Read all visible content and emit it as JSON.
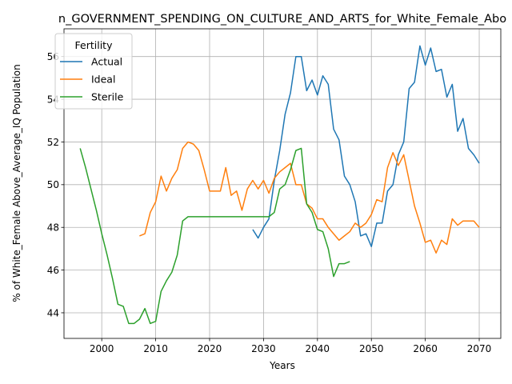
{
  "chart_data": {
    "type": "line",
    "title": "n_GOVERNMENT_SPENDING_ON_CULTURE_AND_ARTS_for_White_Female_Abo",
    "xlabel": "Years",
    "ylabel": "% of White_Female Above_Average_IQ Population",
    "xlim": [
      1993,
      2074
    ],
    "ylim": [
      42.8,
      57.3
    ],
    "xticks": [
      2000,
      2010,
      2020,
      2030,
      2040,
      2050,
      2060,
      2070
    ],
    "yticks": [
      44,
      46,
      48,
      50,
      52,
      54,
      56
    ],
    "grid": true,
    "legend": {
      "title": "Fertility",
      "placement": "top-left"
    },
    "series": [
      {
        "name": "Actual",
        "color": "#1f77b4",
        "x": [
          2028,
          2029,
          2030,
          2031,
          2032,
          2033,
          2034,
          2035,
          2036,
          2037,
          2038,
          2039,
          2040,
          2041,
          2042,
          2043,
          2044,
          2045,
          2046,
          2047,
          2048,
          2049,
          2050,
          2051,
          2052,
          2053,
          2054,
          2055,
          2056,
          2057,
          2058,
          2059,
          2060,
          2061,
          2062,
          2063,
          2064,
          2065,
          2066,
          2067,
          2068,
          2069,
          2070
        ],
        "values": [
          47.9,
          47.5,
          48.0,
          48.4,
          50.2,
          51.6,
          53.3,
          54.3,
          56.0,
          56.0,
          54.4,
          54.9,
          54.2,
          55.1,
          54.7,
          52.6,
          52.1,
          50.4,
          50.0,
          49.2,
          47.6,
          47.7,
          47.1,
          48.2,
          48.2,
          49.7,
          50.0,
          51.4,
          52.0,
          54.5,
          54.8,
          56.5,
          55.6,
          56.4,
          55.3,
          55.4,
          54.1,
          54.7,
          52.5,
          53.1,
          51.7,
          51.4,
          51.0
        ]
      },
      {
        "name": "Ideal",
        "color": "#ff7f0e",
        "x": [
          2007,
          2008,
          2009,
          2010,
          2011,
          2012,
          2013,
          2014,
          2015,
          2016,
          2017,
          2018,
          2019,
          2020,
          2021,
          2022,
          2023,
          2024,
          2025,
          2026,
          2027,
          2028,
          2029,
          2030,
          2031,
          2032,
          2033,
          2034,
          2035,
          2036,
          2037,
          2038,
          2039,
          2040,
          2041,
          2042,
          2043,
          2044,
          2045,
          2046,
          2047,
          2048,
          2049,
          2050,
          2051,
          2052,
          2053,
          2054,
          2055,
          2056,
          2057,
          2058,
          2059,
          2060,
          2061,
          2062,
          2063,
          2064,
          2065,
          2066,
          2067,
          2068,
          2069,
          2070
        ],
        "values": [
          47.6,
          47.7,
          48.7,
          49.2,
          50.4,
          49.7,
          50.3,
          50.7,
          51.7,
          52.0,
          51.9,
          51.6,
          50.7,
          49.7,
          49.7,
          49.7,
          50.8,
          49.5,
          49.7,
          48.8,
          49.8,
          50.2,
          49.8,
          50.2,
          49.6,
          50.3,
          50.6,
          50.8,
          51.0,
          50.0,
          50.0,
          49.1,
          48.9,
          48.4,
          48.4,
          48.0,
          47.7,
          47.4,
          47.6,
          47.8,
          48.2,
          48.0,
          48.2,
          48.6,
          49.3,
          49.2,
          50.8,
          51.5,
          50.9,
          51.4,
          50.2,
          49.0,
          48.2,
          47.3,
          47.4,
          46.8,
          47.4,
          47.2,
          48.4,
          48.1,
          48.3,
          48.3,
          48.3,
          48.0
        ]
      },
      {
        "name": "Sterile",
        "color": "#2ca02c",
        "x": [
          1996,
          1997,
          1998,
          1999,
          2000,
          2001,
          2002,
          2003,
          2004,
          2005,
          2006,
          2007,
          2008,
          2009,
          2010,
          2011,
          2012,
          2013,
          2014,
          2015,
          2016,
          2017,
          2018,
          2019,
          2020,
          2021,
          2022,
          2023,
          2024,
          2025,
          2026,
          2027,
          2028,
          2029,
          2030,
          2031,
          2032,
          2033,
          2034,
          2035,
          2036,
          2037,
          2038,
          2039,
          2040,
          2041,
          2042,
          2043,
          2044,
          2045,
          2046
        ],
        "values": [
          51.7,
          50.8,
          49.8,
          48.8,
          47.7,
          46.7,
          45.6,
          44.4,
          44.3,
          43.5,
          43.5,
          43.7,
          44.2,
          43.5,
          43.6,
          45.0,
          45.5,
          45.9,
          46.7,
          48.3,
          48.5,
          48.5,
          48.5,
          48.5,
          48.5,
          48.5,
          48.5,
          48.5,
          48.5,
          48.5,
          48.5,
          48.5,
          48.5,
          48.5,
          48.5,
          48.5,
          48.7,
          49.8,
          50.0,
          50.7,
          51.6,
          51.7,
          49.1,
          48.7,
          47.9,
          47.8,
          47.0,
          45.7,
          46.3,
          46.3,
          46.4
        ]
      }
    ]
  }
}
